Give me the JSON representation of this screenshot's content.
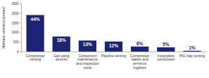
{
  "chart_data": {
    "type": "bar",
    "y_label": "Methane emission (tonnes)",
    "categories": [
      "Compressor venting",
      "Gas using devices",
      "Component maintenance and inspection vents",
      "Pipeline venting",
      "Compressor station and terminus fugitives",
      "Incomplete combustion",
      "PIG trap venting"
    ],
    "values": [
      1900,
      780,
      570,
      520,
      260,
      220,
      40
    ],
    "share_labels": [
      "44%",
      "18%",
      "13%",
      "12%",
      "6%",
      "5%",
      "1%"
    ],
    "color": "#1c2473",
    "ylim": [
      0,
      2500
    ],
    "yticks": [
      0,
      500,
      1000,
      1500,
      2000,
      2500
    ],
    "grid": false
  }
}
